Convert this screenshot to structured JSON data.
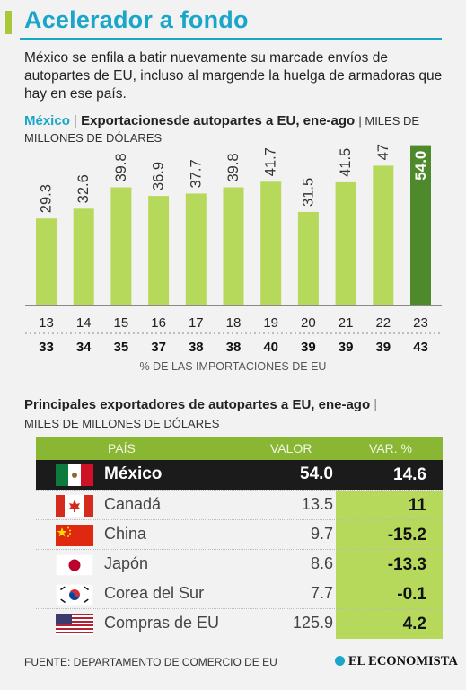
{
  "header": {
    "title": "Acelerador a fondo",
    "intro": "México se enfila a batir nuevamente su marcade envíos de autopartes de EU, incluso al margende la huelga de armadoras que hay en ese país."
  },
  "chart_section": {
    "country": "México",
    "separator": "|",
    "title": "Exportacionesde autopartes a EU, ene-ago",
    "unit": "| MILES DE MILLONES DE DÓLARES",
    "pct_axis_label": "% DE LAS IMPORTACIONES DE EU"
  },
  "chart_data": {
    "type": "bar",
    "title": "Exportacionesde autopartes a EU, ene-ago",
    "ylabel": "MILES DE MILLONES DE DÓLARES",
    "categories": [
      "13",
      "14",
      "15",
      "16",
      "17",
      "18",
      "19",
      "20",
      "21",
      "22",
      "23"
    ],
    "values": [
      29.3,
      32.6,
      39.8,
      36.9,
      37.7,
      39.8,
      41.7,
      31.5,
      41.5,
      47.1,
      54.0
    ],
    "value_labels": [
      "29.3",
      "32.6",
      "39.8",
      "36.9",
      "37.7",
      "39.8",
      "41.7",
      "31.5",
      "41.5",
      "47.1",
      "54.0"
    ],
    "share_of_imports_pct": [
      "33",
      "34",
      "35",
      "37",
      "38",
      "38",
      "40",
      "39",
      "39",
      "39",
      "43"
    ],
    "ylim": [
      0,
      56
    ],
    "grid": false,
    "colors": {
      "bar": "#b7d95b",
      "highlight_bar": "#4e8a2c",
      "label": "#333333",
      "highlight_label": "#ffffff"
    }
  },
  "table_section": {
    "title": "Principales exportadores de autopartes a EU, ene-ago",
    "separator": "|",
    "unit": "MILES DE MILLONES DE DÓLARES",
    "columns": {
      "country": "PAÍS",
      "value": "VALOR",
      "change": "VAR. %"
    },
    "rows": [
      {
        "flag": "mexico-flag-icon",
        "name": "México",
        "value": "54.0",
        "change": "14.6"
      },
      {
        "flag": "canada-flag-icon",
        "name": "Canadá",
        "value": "13.5",
        "change": "11"
      },
      {
        "flag": "china-flag-icon",
        "name": "China",
        "value": "9.7",
        "change": "-15.2"
      },
      {
        "flag": "japan-flag-icon",
        "name": "Japón",
        "value": "8.6",
        "change": "-13.3"
      },
      {
        "flag": "south-korea-flag-icon",
        "name": "Corea del Sur",
        "value": "7.7",
        "change": "-0.1"
      },
      {
        "flag": "usa-flag-icon",
        "name": "Compras de EU",
        "value": "125.9",
        "change": "4.2"
      }
    ]
  },
  "footer": {
    "source": "FUENTE: DEPARTAMENTO DE COMERCIO DE EU",
    "brand": "EL ECONOMISTA"
  },
  "colors": {
    "accent": "#1aa6c9",
    "green": "#8ab733",
    "light_green": "#b7d95b",
    "dark": "#1b1b1b"
  }
}
